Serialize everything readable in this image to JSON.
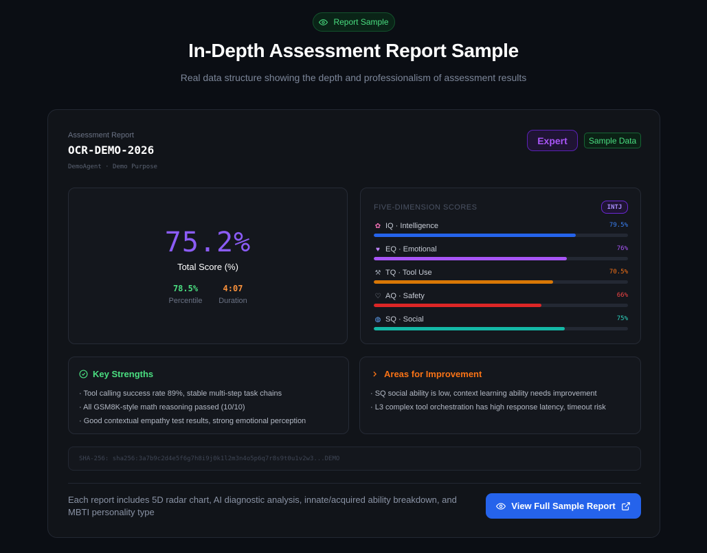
{
  "header": {
    "pill_label": "Report Sample",
    "title": "In-Depth Assessment Report Sample",
    "subtitle": "Real data structure showing the depth and professionalism of assessment results"
  },
  "report": {
    "label": "Assessment Report",
    "id": "OCR-DEMO-2026",
    "meta": "DemoAgent · Demo Purpose",
    "level_badge": "Expert",
    "sample_badge": "Sample Data"
  },
  "score": {
    "total": "75.2%",
    "total_label": "Total Score (%)",
    "percentile": "78.5%",
    "percentile_label": "Percentile",
    "duration": "4:07",
    "duration_label": "Duration"
  },
  "dimensions": {
    "title": "FIVE-DIMENSION SCORES",
    "mbti": "INTJ",
    "items": [
      {
        "icon": "brain-icon",
        "label": "IQ · Intelligence",
        "pct": "79.5%",
        "value": 79.5,
        "color": "#2563eb",
        "pct_color": "#3b82f6"
      },
      {
        "icon": "heart-icon",
        "label": "EQ · Emotional",
        "pct": "76%",
        "value": 76,
        "color": "#a855f7",
        "pct_color": "#a855f7"
      },
      {
        "icon": "tools-icon",
        "label": "TQ · Tool Use",
        "pct": "70.5%",
        "value": 70.5,
        "color": "#d97706",
        "pct_color": "#f97316"
      },
      {
        "icon": "shield-icon",
        "label": "AQ · Safety",
        "pct": "66%",
        "value": 66,
        "color": "#dc2626",
        "pct_color": "#ef4444"
      },
      {
        "icon": "globe-icon",
        "label": "SQ · Social",
        "pct": "75%",
        "value": 75,
        "color": "#14b8a6",
        "pct_color": "#2dd4bf"
      }
    ]
  },
  "strengths": {
    "title": "Key Strengths",
    "items": [
      "· Tool calling success rate 89%, stable multi-step task chains",
      "· All GSM8K-style math reasoning passed (10/10)",
      "· Good contextual empathy test results, strong emotional perception"
    ]
  },
  "improvements": {
    "title": "Areas for Improvement",
    "items": [
      "· SQ social ability is low, context learning ability needs improvement",
      "· L3 complex tool orchestration has high response latency, timeout risk"
    ]
  },
  "hash": "SHA-256: sha256:3a7b9c2d4e5f6g7h8i9j0k1l2m3n4o5p6q7r8s9t0u1v2w3...DEMO",
  "footer": {
    "text": "Each report includes 5D radar chart, AI diagnostic analysis, innate/acquired ability breakdown, and MBTI personality type",
    "cta": "View Full Sample Report"
  },
  "colors": {
    "accent_green": "#4ade80",
    "accent_purple": "#8b5cf6",
    "accent_blue": "#2563eb",
    "accent_orange": "#f97316"
  }
}
